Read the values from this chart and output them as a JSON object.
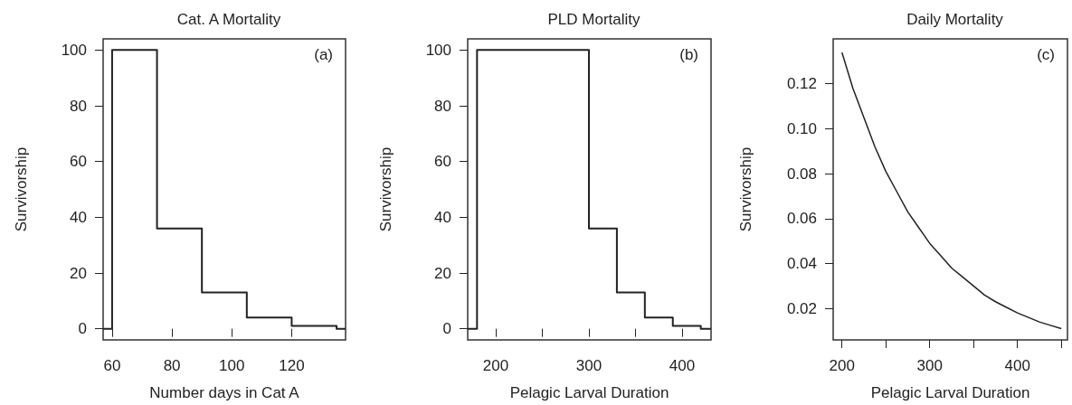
{
  "chart_data": [
    {
      "type": "step",
      "title": "Cat. A Mortality",
      "xlabel": "Number days in Cat A",
      "ylabel": "Survivorship",
      "annotations": [
        "(a)"
      ],
      "x": [
        57,
        60,
        75,
        90,
        105,
        120,
        135,
        138
      ],
      "values": [
        0,
        100,
        36,
        13,
        4,
        1,
        0,
        0
      ],
      "color": "#222222",
      "xlim": [
        57,
        138
      ],
      "xticks": [
        60,
        80,
        100,
        120
      ],
      "ylim": [
        -4,
        104
      ],
      "yticks": [
        0,
        20,
        40,
        60,
        80,
        100
      ],
      "grid": false
    },
    {
      "type": "step",
      "title": "PLD Mortality",
      "xlabel": "Pelagic Larval Duration",
      "ylabel": "Survivorship",
      "annotations": [
        "(b)"
      ],
      "x": [
        170,
        180,
        300,
        330,
        360,
        390,
        420,
        431
      ],
      "values": [
        0,
        100,
        36,
        13,
        4,
        1,
        0,
        0
      ],
      "color": "#222222",
      "xlim": [
        170,
        431
      ],
      "xticks": [
        200,
        {
          "value": 250,
          "label": null
        },
        300,
        {
          "value": 350,
          "label": null
        },
        400
      ],
      "ylim": [
        -4,
        104
      ],
      "yticks": [
        0,
        20,
        40,
        60,
        80,
        100
      ],
      "grid": false
    },
    {
      "type": "line",
      "title": "Daily Mortality",
      "xlabel": "Pelagic Larval Duration",
      "ylabel": "Survivorship",
      "annotations": [
        "(c)"
      ],
      "x": [
        200,
        212.5,
        225,
        237.5,
        250,
        262.5,
        275,
        287.5,
        300,
        312.5,
        325,
        337.5,
        350,
        362.5,
        375,
        387.5,
        400,
        412.5,
        425,
        437.5,
        450
      ],
      "values": [
        0.134,
        0.118,
        0.105,
        0.092,
        0.081,
        0.072,
        0.063,
        0.056,
        0.049,
        0.0435,
        0.038,
        0.034,
        0.03,
        0.026,
        0.023,
        0.0205,
        0.018,
        0.016,
        0.014,
        0.0125,
        0.011
      ],
      "color": "#222222",
      "xlim": [
        190,
        457
      ],
      "xticks": [
        200,
        {
          "value": 250,
          "label": null
        },
        300,
        {
          "value": 350,
          "label": null
        },
        400,
        {
          "value": 450,
          "label": null
        }
      ],
      "ylim": [
        0.006,
        0.14
      ],
      "yticks": [
        0.02,
        0.04,
        0.06,
        0.08,
        {
          "value": 0.1,
          "label": "0.10"
        },
        0.12
      ],
      "grid": false
    }
  ]
}
